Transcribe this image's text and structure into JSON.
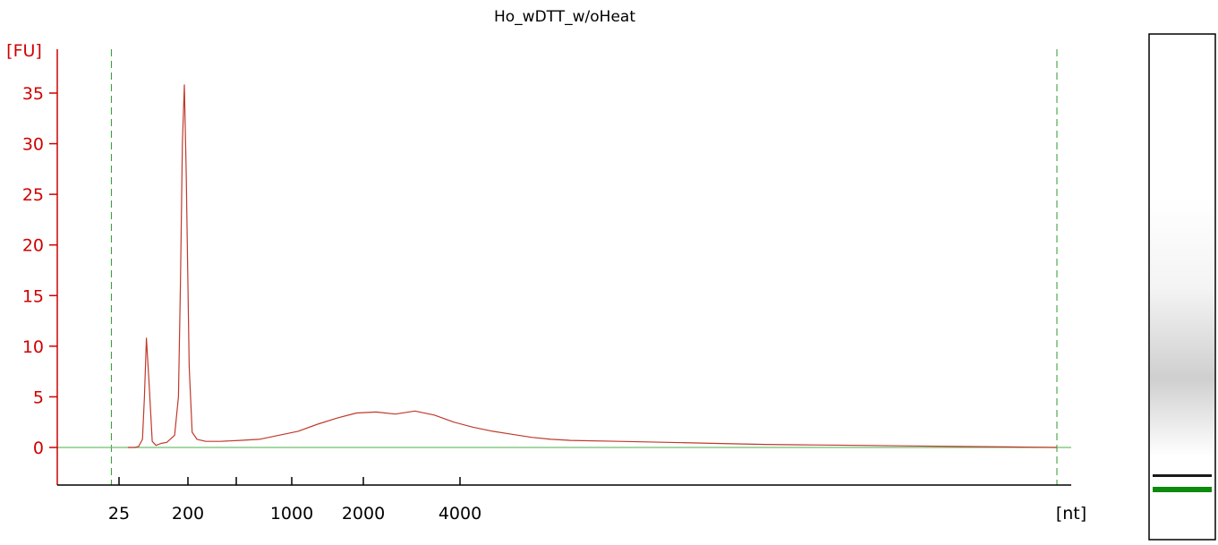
{
  "chart_data": {
    "type": "line",
    "title": "Ho_wDTT_w/oHeat",
    "ylabel": "[FU]",
    "xlabel": "[nt]",
    "ylim": [
      -3.5,
      39
    ],
    "yticks": [
      0,
      5,
      10,
      15,
      20,
      25,
      30,
      35
    ],
    "xticks": [
      "25",
      "200",
      "",
      "1000",
      "2000",
      "4000"
    ],
    "x_range": [
      0,
      100
    ],
    "lower_marker_x": 2.8,
    "upper_marker_x": 100,
    "baseline": 0,
    "colors": {
      "trace": "#c0392b",
      "axis": "#d00000",
      "baseline": "#6fbf6f",
      "marker": "#2e9a2e",
      "gel_band": "#1a1a1a",
      "gel_marker": "#0b8a0b"
    },
    "series": [
      {
        "x": [
          4.5,
          5.2,
          5.6,
          6.0,
          6.2,
          6.4,
          6.7,
          7.0,
          7.4,
          7.9,
          8.5,
          9.3,
          9.7,
          9.9,
          10.1,
          10.3,
          10.5,
          10.8,
          11.1,
          11.6,
          12.5,
          14,
          16,
          18,
          20,
          22,
          24,
          26,
          28,
          30,
          32,
          34,
          36,
          38,
          40,
          42,
          44,
          46,
          48,
          50,
          55,
          60,
          65,
          70,
          75,
          80,
          85,
          90,
          95,
          100
        ],
        "y": [
          0,
          0,
          0.1,
          0.8,
          5,
          10.8,
          6,
          0.6,
          0.2,
          0.4,
          0.5,
          1.2,
          5,
          16,
          30,
          35.8,
          27,
          8,
          1.5,
          0.8,
          0.6,
          0.6,
          0.7,
          0.8,
          1.2,
          1.6,
          2.3,
          2.9,
          3.4,
          3.5,
          3.3,
          3.6,
          3.2,
          2.5,
          2.0,
          1.6,
          1.3,
          1.0,
          0.8,
          0.7,
          0.6,
          0.5,
          0.4,
          0.3,
          0.25,
          0.2,
          0.15,
          0.1,
          0.05,
          0.0
        ]
      }
    ]
  },
  "gel": {
    "bands": [
      "upper-smear",
      "lower-band",
      "marker-band"
    ]
  }
}
